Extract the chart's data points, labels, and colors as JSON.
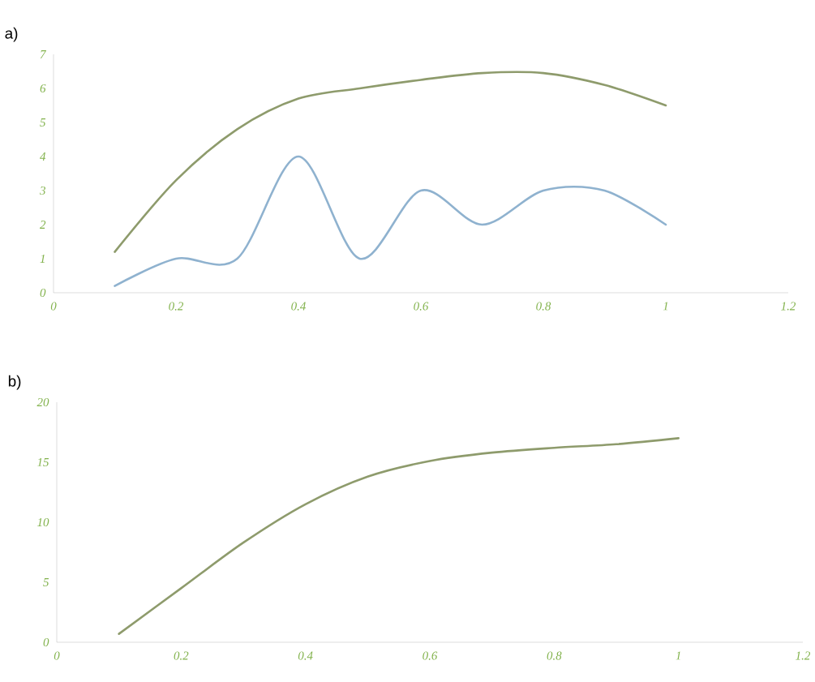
{
  "chart_data": [
    {
      "type": "line",
      "title": "a)",
      "x": [
        0.1,
        0.2,
        0.3,
        0.4,
        0.5,
        0.6,
        0.7,
        0.8,
        0.9,
        1.0
      ],
      "series": [
        {
          "color": "#8e9b6c",
          "values": [
            1.2,
            3.3,
            4.8,
            5.7,
            6.0,
            6.25,
            6.45,
            6.45,
            6.1,
            5.5
          ]
        },
        {
          "color": "#8fb2cf",
          "values": [
            0.2,
            1.0,
            1.0,
            4.0,
            1.0,
            3.0,
            2.0,
            3.0,
            3.0,
            2.0
          ]
        }
      ],
      "xlim": [
        0,
        1.2
      ],
      "xticks": [
        0,
        0.2,
        0.4,
        0.6,
        0.8,
        1,
        1.2
      ],
      "ylim": [
        0,
        7
      ],
      "yticks": [
        0,
        1,
        2,
        3,
        4,
        5,
        6,
        7
      ],
      "grid": false,
      "marker": "none",
      "line_style": "solid"
    },
    {
      "type": "line",
      "title": "b)",
      "x": [
        0.1,
        0.2,
        0.3,
        0.4,
        0.5,
        0.6,
        0.7,
        0.8,
        0.9,
        1.0
      ],
      "series": [
        {
          "color": "#8e9b6c",
          "values": [
            0.7,
            4.5,
            8.3,
            11.5,
            13.8,
            15.1,
            15.8,
            16.2,
            16.5,
            17.0
          ]
        }
      ],
      "xlim": [
        0,
        1.2
      ],
      "xticks": [
        0,
        0.2,
        0.4,
        0.6,
        0.8,
        1,
        1.2
      ],
      "ylim": [
        0,
        20
      ],
      "yticks": [
        0,
        5,
        10,
        15,
        20
      ],
      "grid": false,
      "marker": "none",
      "line_style": "solid"
    }
  ]
}
